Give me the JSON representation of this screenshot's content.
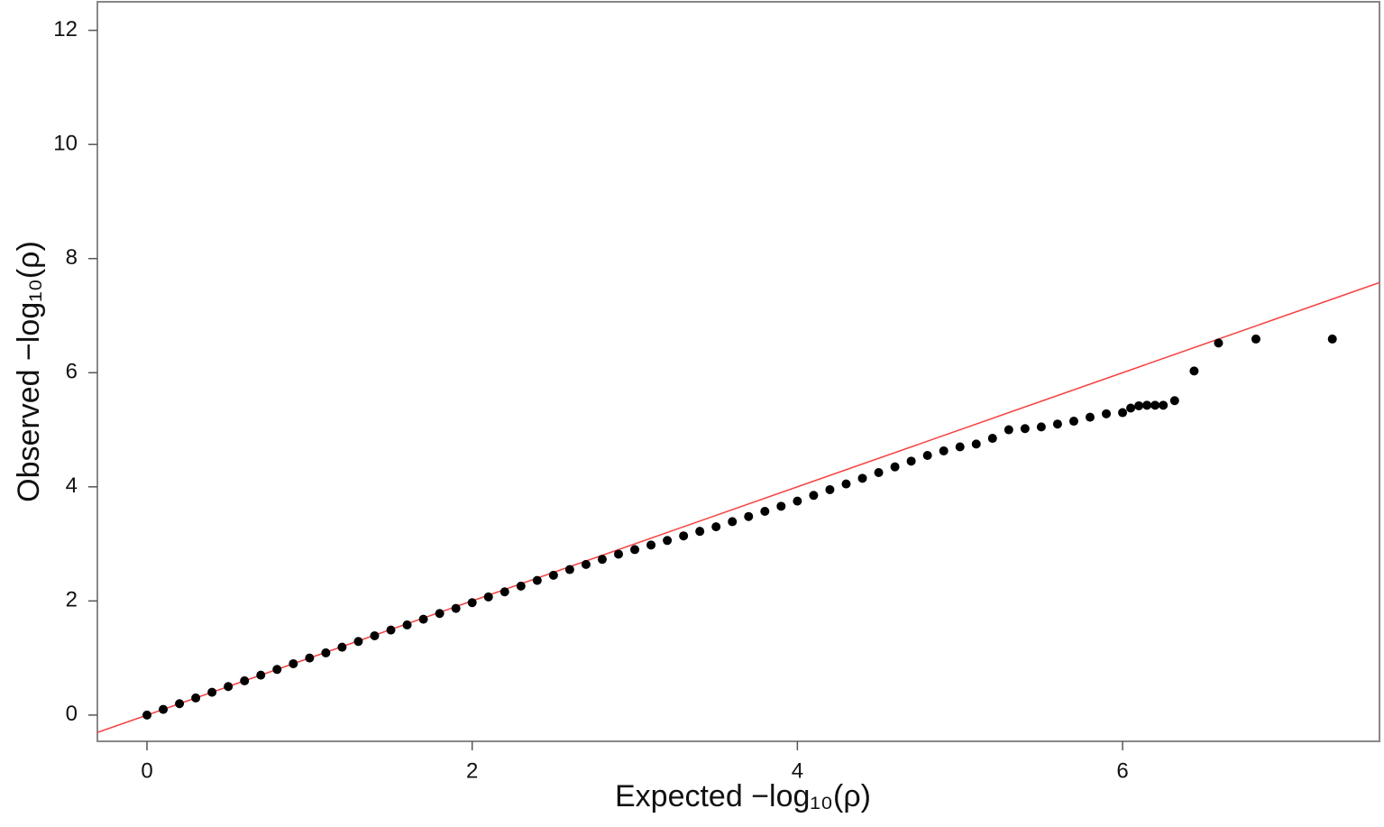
{
  "chart_data": {
    "type": "scatter",
    "xlabel": "Expected −log₁₀(ρ)",
    "ylabel": "Observed −log₁₀(ρ)",
    "x": [
      0,
      0.1,
      0.2,
      0.3,
      0.4,
      0.5,
      0.6,
      0.7,
      0.8,
      0.9,
      1.0,
      1.1,
      1.2,
      1.3,
      1.4,
      1.5,
      1.6,
      1.7,
      1.8,
      1.9,
      2.0,
      2.1,
      2.2,
      2.3,
      2.4,
      2.5,
      2.6,
      2.7,
      2.8,
      2.9,
      3.0,
      3.1,
      3.2,
      3.3,
      3.4,
      3.5,
      3.6,
      3.7,
      3.8,
      3.9,
      4.0,
      4.1,
      4.2,
      4.3,
      4.4,
      4.5,
      4.6,
      4.7,
      4.8,
      4.9,
      5.0,
      5.1,
      5.2,
      5.3,
      5.4,
      5.5,
      5.6,
      5.7,
      5.8,
      5.9,
      6.0,
      6.05,
      6.1,
      6.15,
      6.2,
      6.25,
      6.32,
      6.44,
      6.59,
      6.82,
      7.29
    ],
    "values": [
      0,
      0.1,
      0.2,
      0.3,
      0.4,
      0.5,
      0.6,
      0.7,
      0.8,
      0.9,
      1.0,
      1.09,
      1.19,
      1.29,
      1.39,
      1.49,
      1.58,
      1.68,
      1.78,
      1.87,
      1.97,
      2.07,
      2.16,
      2.26,
      2.36,
      2.45,
      2.55,
      2.64,
      2.73,
      2.82,
      2.9,
      2.98,
      3.06,
      3.14,
      3.22,
      3.3,
      3.39,
      3.48,
      3.57,
      3.66,
      3.75,
      3.85,
      3.95,
      4.05,
      4.15,
      4.25,
      4.35,
      4.45,
      4.55,
      4.63,
      4.7,
      4.75,
      4.85,
      5.0,
      5.02,
      5.05,
      5.1,
      5.15,
      5.22,
      5.28,
      5.3,
      5.38,
      5.42,
      5.43,
      5.43,
      5.43,
      5.51,
      6.03,
      6.52,
      6.59,
      6.59
    ],
    "color": "#000000",
    "reference_line": {
      "slope": 1,
      "intercept": 0,
      "color": "#ff3c3c"
    },
    "xlim": [
      -0.305,
      7.58
    ],
    "xticks": [
      0,
      2,
      4,
      6
    ],
    "ylim": [
      -0.46,
      12.5
    ],
    "yticks": [
      0,
      2,
      4,
      6,
      8,
      10,
      12
    ]
  }
}
